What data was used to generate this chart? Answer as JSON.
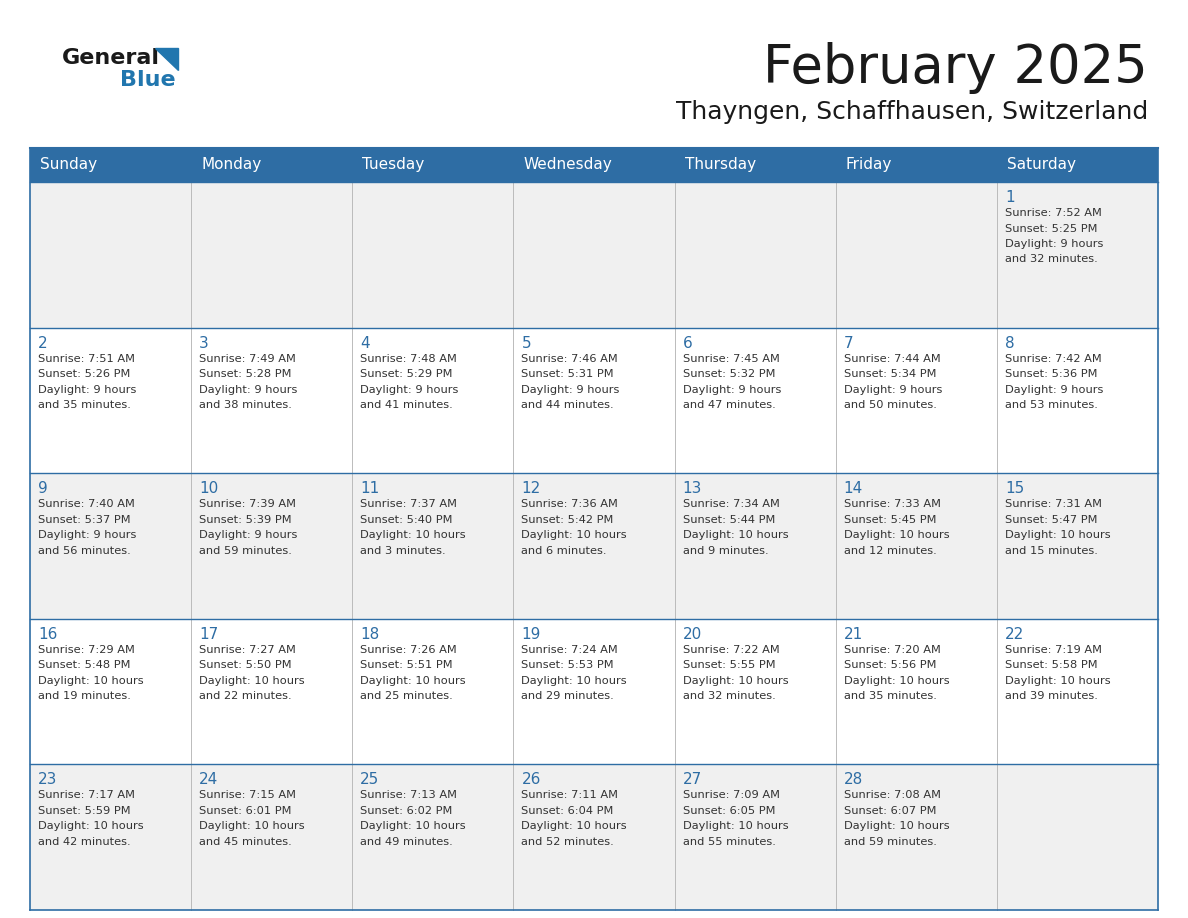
{
  "title": "February 2025",
  "subtitle": "Thayngen, Schaffhausen, Switzerland",
  "header_bg": "#2E6DA4",
  "header_text_color": "#FFFFFF",
  "day_names": [
    "Sunday",
    "Monday",
    "Tuesday",
    "Wednesday",
    "Thursday",
    "Friday",
    "Saturday"
  ],
  "cell_bg_odd": "#F0F0F0",
  "cell_bg_even": "#FFFFFF",
  "grid_color": "#2E6DA4",
  "text_color": "#333333",
  "day_number_color": "#2E6DA4",
  "logo_blue_color": "#2176AE",
  "weeks": [
    [
      {
        "day": null,
        "info": ""
      },
      {
        "day": null,
        "info": ""
      },
      {
        "day": null,
        "info": ""
      },
      {
        "day": null,
        "info": ""
      },
      {
        "day": null,
        "info": ""
      },
      {
        "day": null,
        "info": ""
      },
      {
        "day": 1,
        "info": "Sunrise: 7:52 AM\nSunset: 5:25 PM\nDaylight: 9 hours\nand 32 minutes."
      }
    ],
    [
      {
        "day": 2,
        "info": "Sunrise: 7:51 AM\nSunset: 5:26 PM\nDaylight: 9 hours\nand 35 minutes."
      },
      {
        "day": 3,
        "info": "Sunrise: 7:49 AM\nSunset: 5:28 PM\nDaylight: 9 hours\nand 38 minutes."
      },
      {
        "day": 4,
        "info": "Sunrise: 7:48 AM\nSunset: 5:29 PM\nDaylight: 9 hours\nand 41 minutes."
      },
      {
        "day": 5,
        "info": "Sunrise: 7:46 AM\nSunset: 5:31 PM\nDaylight: 9 hours\nand 44 minutes."
      },
      {
        "day": 6,
        "info": "Sunrise: 7:45 AM\nSunset: 5:32 PM\nDaylight: 9 hours\nand 47 minutes."
      },
      {
        "day": 7,
        "info": "Sunrise: 7:44 AM\nSunset: 5:34 PM\nDaylight: 9 hours\nand 50 minutes."
      },
      {
        "day": 8,
        "info": "Sunrise: 7:42 AM\nSunset: 5:36 PM\nDaylight: 9 hours\nand 53 minutes."
      }
    ],
    [
      {
        "day": 9,
        "info": "Sunrise: 7:40 AM\nSunset: 5:37 PM\nDaylight: 9 hours\nand 56 minutes."
      },
      {
        "day": 10,
        "info": "Sunrise: 7:39 AM\nSunset: 5:39 PM\nDaylight: 9 hours\nand 59 minutes."
      },
      {
        "day": 11,
        "info": "Sunrise: 7:37 AM\nSunset: 5:40 PM\nDaylight: 10 hours\nand 3 minutes."
      },
      {
        "day": 12,
        "info": "Sunrise: 7:36 AM\nSunset: 5:42 PM\nDaylight: 10 hours\nand 6 minutes."
      },
      {
        "day": 13,
        "info": "Sunrise: 7:34 AM\nSunset: 5:44 PM\nDaylight: 10 hours\nand 9 minutes."
      },
      {
        "day": 14,
        "info": "Sunrise: 7:33 AM\nSunset: 5:45 PM\nDaylight: 10 hours\nand 12 minutes."
      },
      {
        "day": 15,
        "info": "Sunrise: 7:31 AM\nSunset: 5:47 PM\nDaylight: 10 hours\nand 15 minutes."
      }
    ],
    [
      {
        "day": 16,
        "info": "Sunrise: 7:29 AM\nSunset: 5:48 PM\nDaylight: 10 hours\nand 19 minutes."
      },
      {
        "day": 17,
        "info": "Sunrise: 7:27 AM\nSunset: 5:50 PM\nDaylight: 10 hours\nand 22 minutes."
      },
      {
        "day": 18,
        "info": "Sunrise: 7:26 AM\nSunset: 5:51 PM\nDaylight: 10 hours\nand 25 minutes."
      },
      {
        "day": 19,
        "info": "Sunrise: 7:24 AM\nSunset: 5:53 PM\nDaylight: 10 hours\nand 29 minutes."
      },
      {
        "day": 20,
        "info": "Sunrise: 7:22 AM\nSunset: 5:55 PM\nDaylight: 10 hours\nand 32 minutes."
      },
      {
        "day": 21,
        "info": "Sunrise: 7:20 AM\nSunset: 5:56 PM\nDaylight: 10 hours\nand 35 minutes."
      },
      {
        "day": 22,
        "info": "Sunrise: 7:19 AM\nSunset: 5:58 PM\nDaylight: 10 hours\nand 39 minutes."
      }
    ],
    [
      {
        "day": 23,
        "info": "Sunrise: 7:17 AM\nSunset: 5:59 PM\nDaylight: 10 hours\nand 42 minutes."
      },
      {
        "day": 24,
        "info": "Sunrise: 7:15 AM\nSunset: 6:01 PM\nDaylight: 10 hours\nand 45 minutes."
      },
      {
        "day": 25,
        "info": "Sunrise: 7:13 AM\nSunset: 6:02 PM\nDaylight: 10 hours\nand 49 minutes."
      },
      {
        "day": 26,
        "info": "Sunrise: 7:11 AM\nSunset: 6:04 PM\nDaylight: 10 hours\nand 52 minutes."
      },
      {
        "day": 27,
        "info": "Sunrise: 7:09 AM\nSunset: 6:05 PM\nDaylight: 10 hours\nand 55 minutes."
      },
      {
        "day": 28,
        "info": "Sunrise: 7:08 AM\nSunset: 6:07 PM\nDaylight: 10 hours\nand 59 minutes."
      },
      {
        "day": null,
        "info": ""
      }
    ]
  ]
}
